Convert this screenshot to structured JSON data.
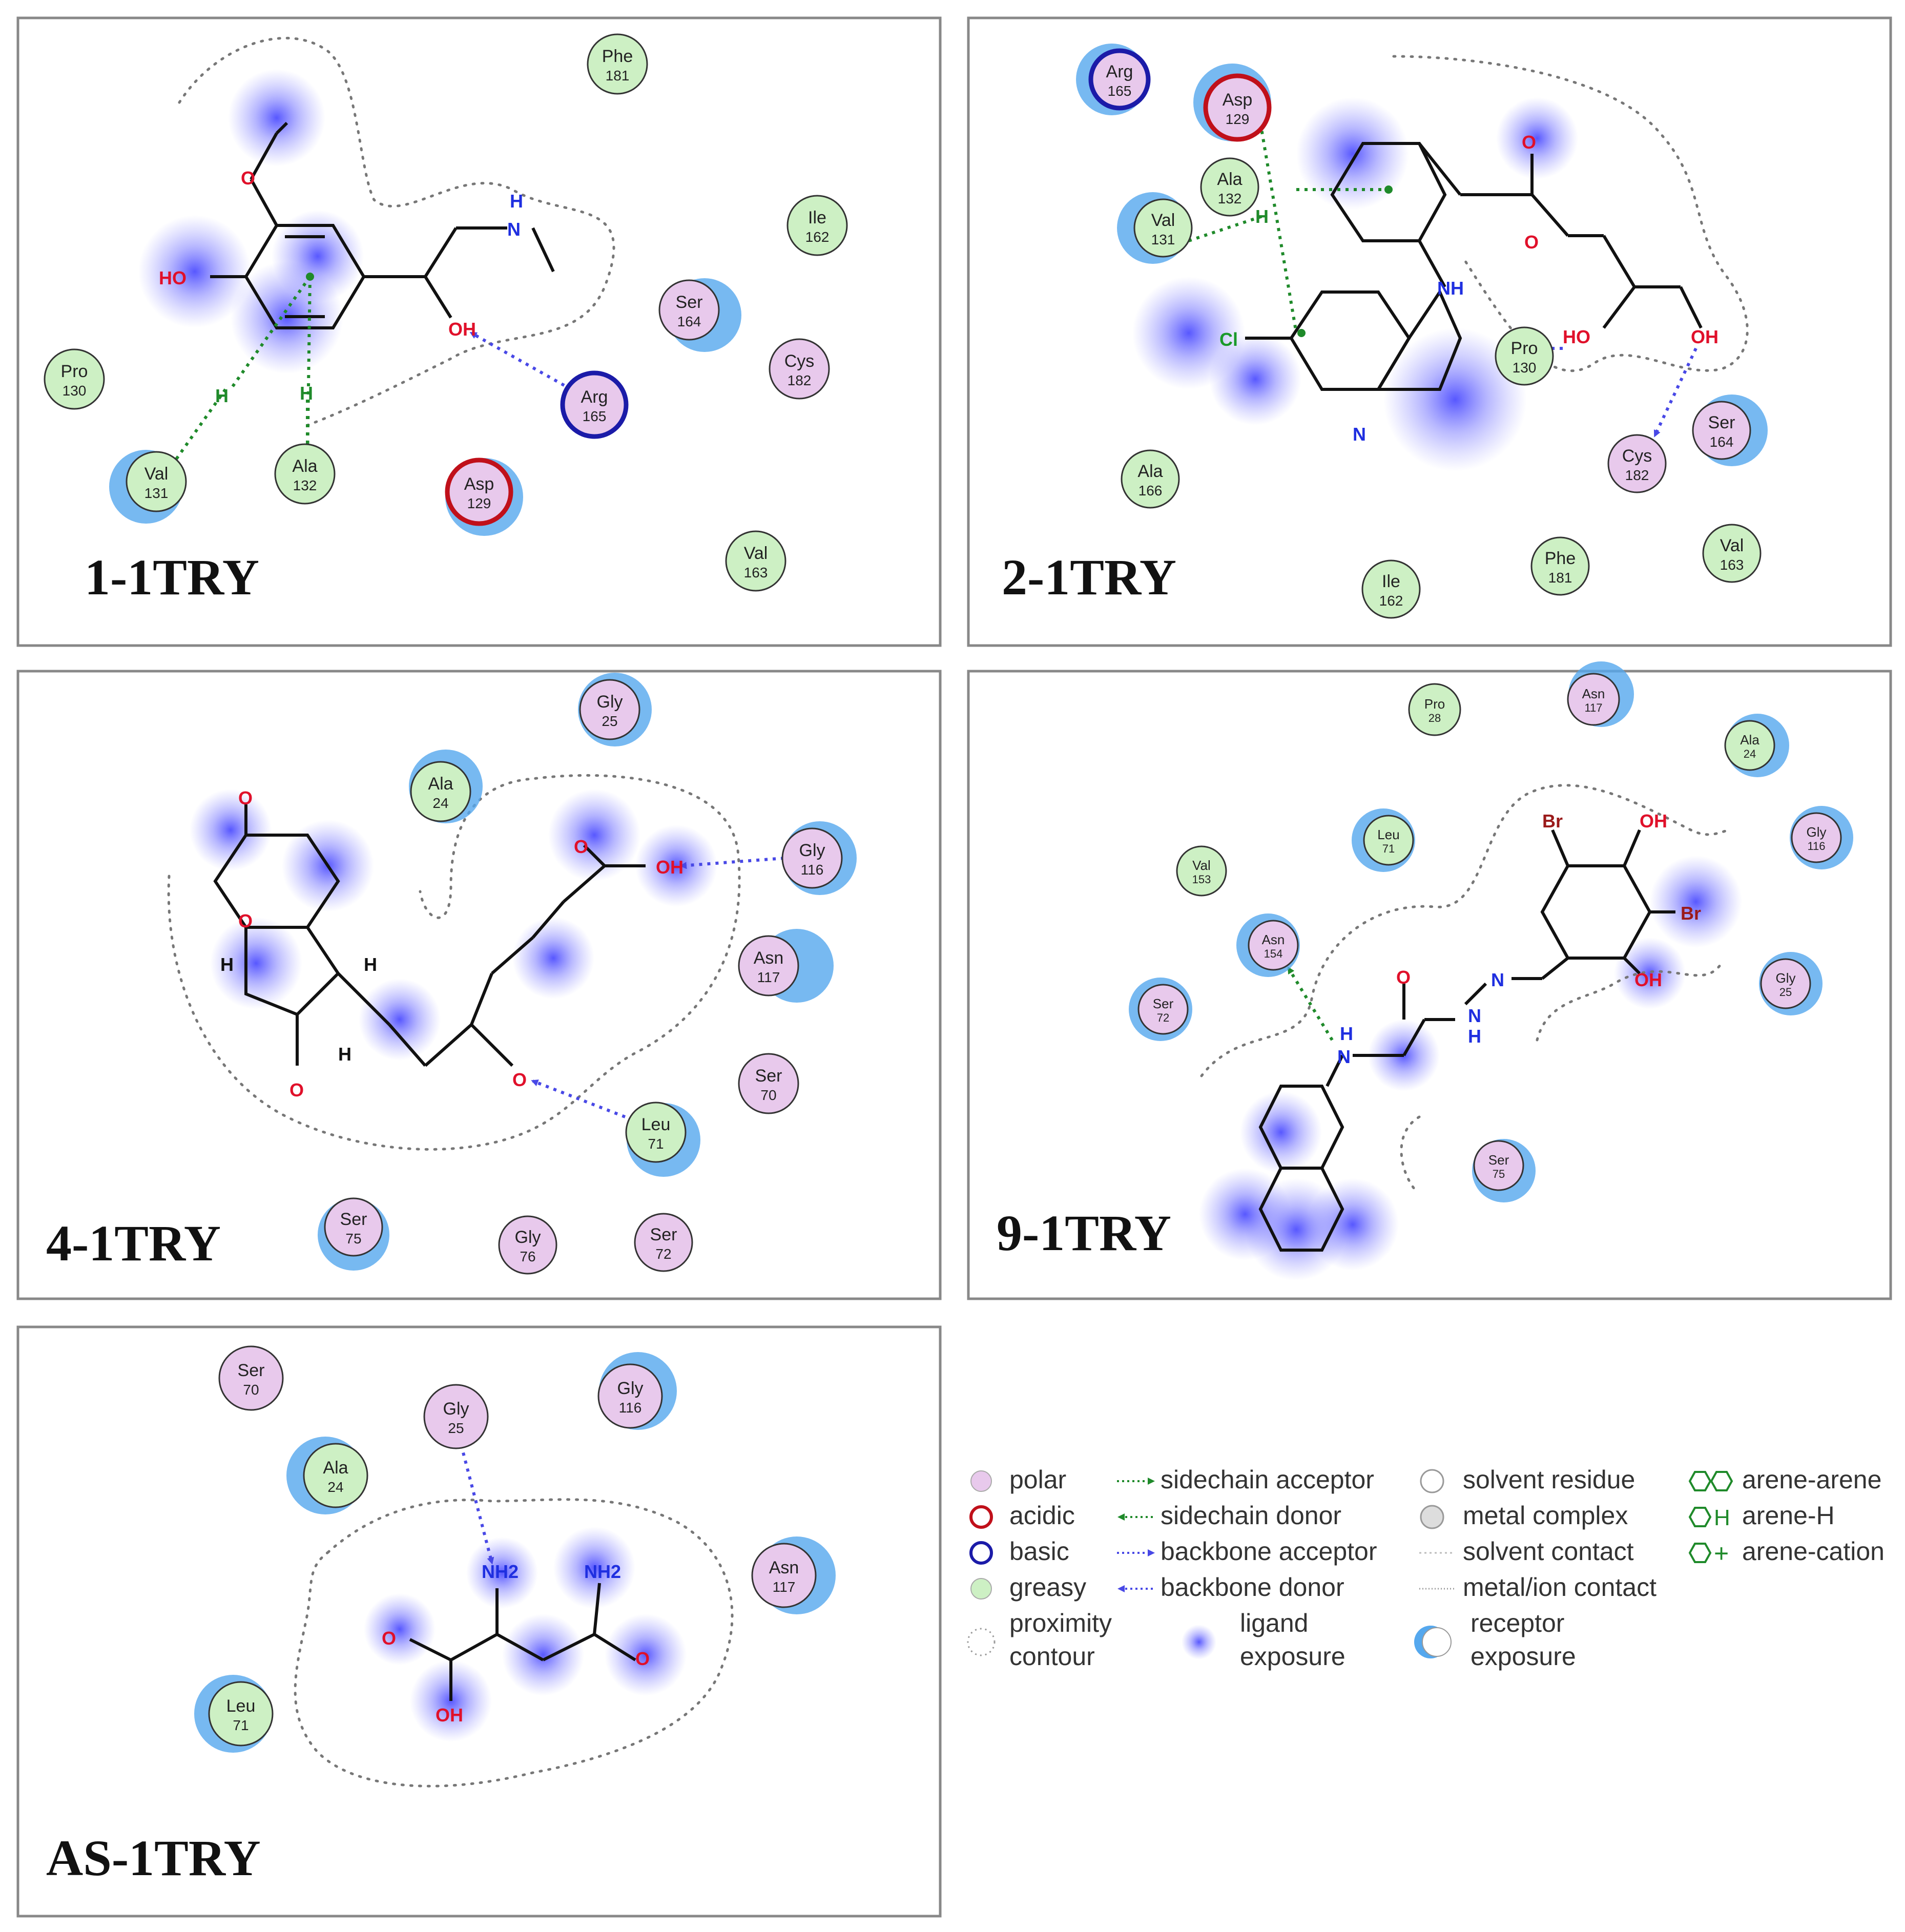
{
  "panels": [
    {
      "id": "p1",
      "label": "1-1TRY",
      "residues": [
        {
          "name": "Phe",
          "num": "181",
          "type": "greasy"
        },
        {
          "name": "Ile",
          "num": "162",
          "type": "greasy"
        },
        {
          "name": "Ser",
          "num": "164",
          "type": "polar"
        },
        {
          "name": "Cys",
          "num": "182",
          "type": "polar"
        },
        {
          "name": "Pro",
          "num": "130",
          "type": "greasy"
        },
        {
          "name": "Arg",
          "num": "165",
          "type": "basic"
        },
        {
          "name": "Val",
          "num": "131",
          "type": "greasy"
        },
        {
          "name": "Ala",
          "num": "132",
          "type": "greasy"
        },
        {
          "name": "Asp",
          "num": "129",
          "type": "acidic"
        },
        {
          "name": "Val",
          "num": "163",
          "type": "greasy"
        }
      ],
      "atoms": [
        "O",
        "HO",
        "N",
        "H",
        "OH",
        "H",
        "H"
      ]
    },
    {
      "id": "p2",
      "label": "2-1TRY",
      "residues": [
        {
          "name": "Arg",
          "num": "165",
          "type": "basic"
        },
        {
          "name": "Asp",
          "num": "129",
          "type": "acidic"
        },
        {
          "name": "Ala",
          "num": "132",
          "type": "greasy"
        },
        {
          "name": "Val",
          "num": "131",
          "type": "greasy"
        },
        {
          "name": "Pro",
          "num": "130",
          "type": "greasy"
        },
        {
          "name": "Ser",
          "num": "164",
          "type": "polar"
        },
        {
          "name": "Cys",
          "num": "182",
          "type": "polar"
        },
        {
          "name": "Ala",
          "num": "166",
          "type": "greasy"
        },
        {
          "name": "Ile",
          "num": "162",
          "type": "greasy"
        },
        {
          "name": "Phe",
          "num": "181",
          "type": "greasy"
        },
        {
          "name": "Val",
          "num": "163",
          "type": "greasy"
        }
      ],
      "atoms": [
        "O",
        "O",
        "NH",
        "Cl",
        "N",
        "HO",
        "OH",
        "H"
      ]
    },
    {
      "id": "p4",
      "label": "4-1TRY",
      "residues": [
        {
          "name": "Gly",
          "num": "25",
          "type": "polar"
        },
        {
          "name": "Ala",
          "num": "24",
          "type": "greasy"
        },
        {
          "name": "Gly",
          "num": "116",
          "type": "polar"
        },
        {
          "name": "Asn",
          "num": "117",
          "type": "polar"
        },
        {
          "name": "Ser",
          "num": "70",
          "type": "polar"
        },
        {
          "name": "Leu",
          "num": "71",
          "type": "greasy"
        },
        {
          "name": "Ser",
          "num": "75",
          "type": "polar"
        },
        {
          "name": "Gly",
          "num": "76",
          "type": "polar"
        },
        {
          "name": "Ser",
          "num": "72",
          "type": "polar"
        }
      ],
      "atoms": [
        "O",
        "O",
        "H",
        "H",
        "H",
        "O",
        "O",
        "OH",
        "O"
      ]
    },
    {
      "id": "p9",
      "label": "9-1TRY",
      "residues": [
        {
          "name": "Pro",
          "num": "28",
          "type": "greasy"
        },
        {
          "name": "Asn",
          "num": "117",
          "type": "polar"
        },
        {
          "name": "Ala",
          "num": "24",
          "type": "greasy"
        },
        {
          "name": "Leu",
          "num": "71",
          "type": "greasy"
        },
        {
          "name": "Gly",
          "num": "116",
          "type": "polar"
        },
        {
          "name": "Val",
          "num": "153",
          "type": "greasy"
        },
        {
          "name": "Asn",
          "num": "154",
          "type": "polar"
        },
        {
          "name": "Ser",
          "num": "72",
          "type": "polar"
        },
        {
          "name": "Gly",
          "num": "25",
          "type": "polar"
        },
        {
          "name": "Ser",
          "num": "75",
          "type": "polar"
        }
      ],
      "atoms": [
        "Br",
        "OH",
        "Br",
        "OH",
        "O",
        "N",
        "N",
        "H",
        "H",
        "N"
      ]
    },
    {
      "id": "pas",
      "label": "AS-1TRY",
      "residues": [
        {
          "name": "Ser",
          "num": "70",
          "type": "polar"
        },
        {
          "name": "Gly",
          "num": "25",
          "type": "polar"
        },
        {
          "name": "Gly",
          "num": "116",
          "type": "polar"
        },
        {
          "name": "Ala",
          "num": "24",
          "type": "greasy"
        },
        {
          "name": "Asn",
          "num": "117",
          "type": "polar"
        },
        {
          "name": "Leu",
          "num": "71",
          "type": "greasy"
        }
      ],
      "atoms": [
        "NH2",
        "NH2",
        "O",
        "O",
        "OH"
      ]
    }
  ],
  "legend": {
    "col1": [
      {
        "label": "polar",
        "kind": "polar"
      },
      {
        "label": "acidic",
        "kind": "acidic"
      },
      {
        "label": "basic",
        "kind": "basic"
      },
      {
        "label": "greasy",
        "kind": "greasy"
      },
      {
        "label": "proximity\ncontour",
        "kind": "proximity"
      }
    ],
    "col2": [
      {
        "label": "sidechain acceptor",
        "kind": "sc-acc"
      },
      {
        "label": "sidechain donor",
        "kind": "sc-don"
      },
      {
        "label": "backbone acceptor",
        "kind": "bb-acc"
      },
      {
        "label": "backbone donor",
        "kind": "bb-don"
      },
      {
        "label": "ligand\nexposure",
        "kind": "lig-exp"
      }
    ],
    "col3": [
      {
        "label": "solvent residue",
        "kind": "solvent"
      },
      {
        "label": "metal complex",
        "kind": "metal"
      },
      {
        "label": "solvent contact",
        "kind": "solv-contact"
      },
      {
        "label": "metal/ion contact",
        "kind": "metal-contact"
      },
      {
        "label": "receptor\nexposure",
        "kind": "rec-exp"
      }
    ],
    "col4": [
      {
        "label": "arene-arene",
        "kind": "arene-arene"
      },
      {
        "label": "arene-H",
        "kind": "arene-h"
      },
      {
        "label": "arene-cation",
        "kind": "arene-cation"
      }
    ]
  },
  "colors": {
    "polar": "#e8c9ec",
    "greasy": "#cdf0c4",
    "acidic_ring": "#c0101a",
    "basic_ring": "#1b1ba8",
    "exposure_blue": "#4444ff",
    "receptor_blue": "#55a8ee",
    "hbond_blue": "#4848e6",
    "arene_green": "#1f8a2a",
    "oxygen": "#e0102a",
    "nitrogen": "#1f2fe0",
    "chlorine": "#1a9a2a",
    "bromine": "#9a1a1a"
  }
}
